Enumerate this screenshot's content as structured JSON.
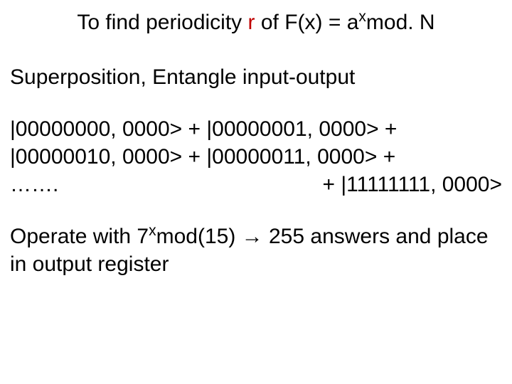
{
  "title": {
    "lead": "To find periodicity ",
    "r": "r",
    "mid": " of F(x) = a",
    "exp": "x",
    "tail": "mod. N",
    "red_color": "#c00000"
  },
  "subhead": "Superposition, Entangle input-output",
  "kets": {
    "row1_a": "|00000000, 0000> + |00000001, 0000> +",
    "row2_a": "|00000010, 0000> + |00000011, 0000> +",
    "row3_left": "…….",
    "row3_right": "+ |11111111, 0000>"
  },
  "operate": {
    "pre": "Operate with 7",
    "exp": "x",
    "mid": "mod(15) ",
    "arrow": "→",
    "post": " 255 answers and place in output register"
  },
  "colors": {
    "text": "#000000",
    "background": "#ffffff"
  },
  "font_family": "Comic Sans MS",
  "base_fontsize_pt": 22
}
